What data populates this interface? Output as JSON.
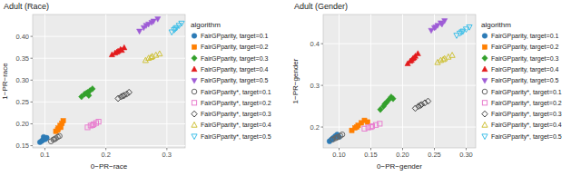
{
  "chart_data": [
    {
      "type": "scatter",
      "title": "Adult (Race)",
      "x_label": "0−PR−race",
      "y_label": "1−PR−race",
      "xlim": [
        0.08,
        0.33
      ],
      "xticks": [
        0.1,
        0.2,
        0.3
      ],
      "ylim": [
        0.145,
        0.45
      ],
      "yticks": [
        0.15,
        {
          "value": 0.2,
          "label": "0.20"
        },
        0.25,
        {
          "value": 0.3,
          "label": "0.30"
        },
        0.35,
        {
          "value": 0.4,
          "label": "0.40"
        }
      ],
      "grid": true,
      "legend": "right",
      "legend_title": "algorithm",
      "series": [
        {
          "name": "FairGPparity, target=0.1",
          "color": "#2c7bb6",
          "marker": "circle",
          "x": [
            0.092,
            0.097,
            0.1,
            0.103,
            0.098,
            0.095,
            0.101
          ],
          "values": [
            0.158,
            0.163,
            0.166,
            0.168,
            0.17,
            0.161,
            0.165
          ]
        },
        {
          "name": "FairGPparity, target=0.2",
          "color": "#ff7f00",
          "marker": "square",
          "x": [
            0.118,
            0.122,
            0.125,
            0.128,
            0.13,
            0.126,
            0.121
          ],
          "values": [
            0.183,
            0.19,
            0.196,
            0.201,
            0.207,
            0.192,
            0.186
          ]
        },
        {
          "name": "FairGPparity, target=0.3",
          "color": "#33a02c",
          "marker": "diamond",
          "x": [
            0.16,
            0.165,
            0.17,
            0.174,
            0.178,
            0.168,
            0.172
          ],
          "values": [
            0.262,
            0.268,
            0.272,
            0.276,
            0.28,
            0.27,
            0.265
          ]
        },
        {
          "name": "FairGPparity, target=0.4",
          "color": "#e31a1c",
          "marker": "triangle",
          "x": [
            0.21,
            0.215,
            0.22,
            0.224,
            0.23,
            0.218,
            0.226
          ],
          "values": [
            0.358,
            0.362,
            0.366,
            0.37,
            0.374,
            0.364,
            0.368
          ]
        },
        {
          "name": "FairGPparity, target=0.5",
          "color": "#9e5cd6",
          "marker": "triangle-down",
          "x": [
            0.255,
            0.262,
            0.27,
            0.278,
            0.285,
            0.266,
            0.275
          ],
          "values": [
            0.412,
            0.42,
            0.428,
            0.435,
            0.44,
            0.425,
            0.432
          ]
        },
        {
          "name": "FairGPparity*, target=0.1",
          "color": "#666666",
          "marker": "circle-open",
          "x": [
            0.11,
            0.114,
            0.118,
            0.121,
            0.124,
            0.116
          ],
          "values": [
            0.16,
            0.164,
            0.167,
            0.17,
            0.172,
            0.165
          ]
        },
        {
          "name": "FairGPparity*, target=0.2",
          "color": "#e87fcf",
          "marker": "square-open",
          "x": [
            0.17,
            0.175,
            0.18,
            0.184,
            0.188,
            0.178
          ],
          "values": [
            0.192,
            0.196,
            0.199,
            0.202,
            0.205,
            0.197
          ]
        },
        {
          "name": "FairGPparity*, target=0.3",
          "color": "#444444",
          "marker": "diamond-open",
          "x": [
            0.22,
            0.225,
            0.23,
            0.234,
            0.238,
            0.228
          ],
          "values": [
            0.258,
            0.262,
            0.265,
            0.268,
            0.272,
            0.264
          ]
        },
        {
          "name": "FairGPparity*, target=0.4",
          "color": "#cfc23a",
          "marker": "triangle-open",
          "x": [
            0.265,
            0.27,
            0.276,
            0.282,
            0.288,
            0.274
          ],
          "values": [
            0.345,
            0.35,
            0.354,
            0.357,
            0.36,
            0.352
          ]
        },
        {
          "name": "FairGPparity*, target=0.5",
          "color": "#3fbfe8",
          "marker": "triangle-down-open",
          "x": [
            0.308,
            0.312,
            0.316,
            0.32,
            0.324,
            0.314
          ],
          "values": [
            0.41,
            0.415,
            0.42,
            0.425,
            0.43,
            0.418
          ]
        }
      ]
    },
    {
      "type": "scatter",
      "title": "Adult (Gender)",
      "x_label": "0−PR−gender",
      "y_label": "1−PR−gender",
      "xlim": [
        0.075,
        0.315
      ],
      "xticks": [
        {
          "value": 0.1,
          "label": "0.10"
        },
        0.15,
        {
          "value": 0.2,
          "label": "0.20"
        },
        0.25,
        {
          "value": 0.3,
          "label": "0.30"
        }
      ],
      "ylim": [
        0.15,
        0.47
      ],
      "yticks": [
        0.2,
        0.3,
        0.4
      ],
      "grid": true,
      "legend": "right",
      "legend_title": "algorithm",
      "series": [
        {
          "name": "FairGPparity, target=0.1",
          "color": "#2c7bb6",
          "marker": "circle",
          "x": [
            0.085,
            0.088,
            0.091,
            0.094,
            0.097,
            0.09,
            0.1
          ],
          "values": [
            0.166,
            0.17,
            0.174,
            0.178,
            0.182,
            0.172,
            0.176
          ]
        },
        {
          "name": "FairGPparity, target=0.2",
          "color": "#ff7f00",
          "marker": "square",
          "x": [
            0.12,
            0.125,
            0.13,
            0.135,
            0.14,
            0.128,
            0.145
          ],
          "values": [
            0.192,
            0.198,
            0.204,
            0.21,
            0.216,
            0.2,
            0.212
          ]
        },
        {
          "name": "FairGPparity, target=0.3",
          "color": "#33a02c",
          "marker": "diamond",
          "x": [
            0.165,
            0.17,
            0.174,
            0.178,
            0.182,
            0.172,
            0.185
          ],
          "values": [
            0.242,
            0.25,
            0.258,
            0.265,
            0.272,
            0.255,
            0.268
          ]
        },
        {
          "name": "FairGPparity, target=0.4",
          "color": "#e31a1c",
          "marker": "triangle",
          "x": [
            0.208,
            0.212,
            0.216,
            0.22,
            0.224,
            0.214,
            0.218
          ],
          "values": [
            0.352,
            0.358,
            0.364,
            0.37,
            0.376,
            0.36,
            0.366
          ]
        },
        {
          "name": "FairGPparity, target=0.5",
          "color": "#9e5cd6",
          "marker": "triangle-down",
          "x": [
            0.245,
            0.25,
            0.255,
            0.26,
            0.266,
            0.252,
            0.262
          ],
          "values": [
            0.432,
            0.438,
            0.444,
            0.45,
            0.455,
            0.44,
            0.447
          ]
        },
        {
          "name": "FairGPparity*, target=0.1",
          "color": "#666666",
          "marker": "circle-open",
          "x": [
            0.09,
            0.094,
            0.098,
            0.102,
            0.096,
            0.105
          ],
          "values": [
            0.17,
            0.173,
            0.176,
            0.179,
            0.175,
            0.182
          ]
        },
        {
          "name": "FairGPparity*, target=0.2",
          "color": "#e87fcf",
          "marker": "square-open",
          "x": [
            0.14,
            0.146,
            0.152,
            0.158,
            0.164,
            0.15
          ],
          "values": [
            0.196,
            0.199,
            0.202,
            0.205,
            0.208,
            0.2
          ]
        },
        {
          "name": "FairGPparity*, target=0.3",
          "color": "#444444",
          "marker": "diamond-open",
          "x": [
            0.22,
            0.225,
            0.23,
            0.235,
            0.24,
            0.228
          ],
          "values": [
            0.245,
            0.25,
            0.254,
            0.258,
            0.262,
            0.252
          ]
        },
        {
          "name": "FairGPparity*, target=0.4",
          "color": "#cfc23a",
          "marker": "triangle-open",
          "x": [
            0.255,
            0.26,
            0.266,
            0.272,
            0.278,
            0.264
          ],
          "values": [
            0.355,
            0.36,
            0.364,
            0.368,
            0.372,
            0.362
          ]
        },
        {
          "name": "FairGPparity*, target=0.5",
          "color": "#3fbfe8",
          "marker": "triangle-down-open",
          "x": [
            0.285,
            0.29,
            0.295,
            0.3,
            0.305,
            0.293
          ],
          "values": [
            0.42,
            0.425,
            0.43,
            0.435,
            0.44,
            0.428
          ]
        }
      ]
    }
  ]
}
